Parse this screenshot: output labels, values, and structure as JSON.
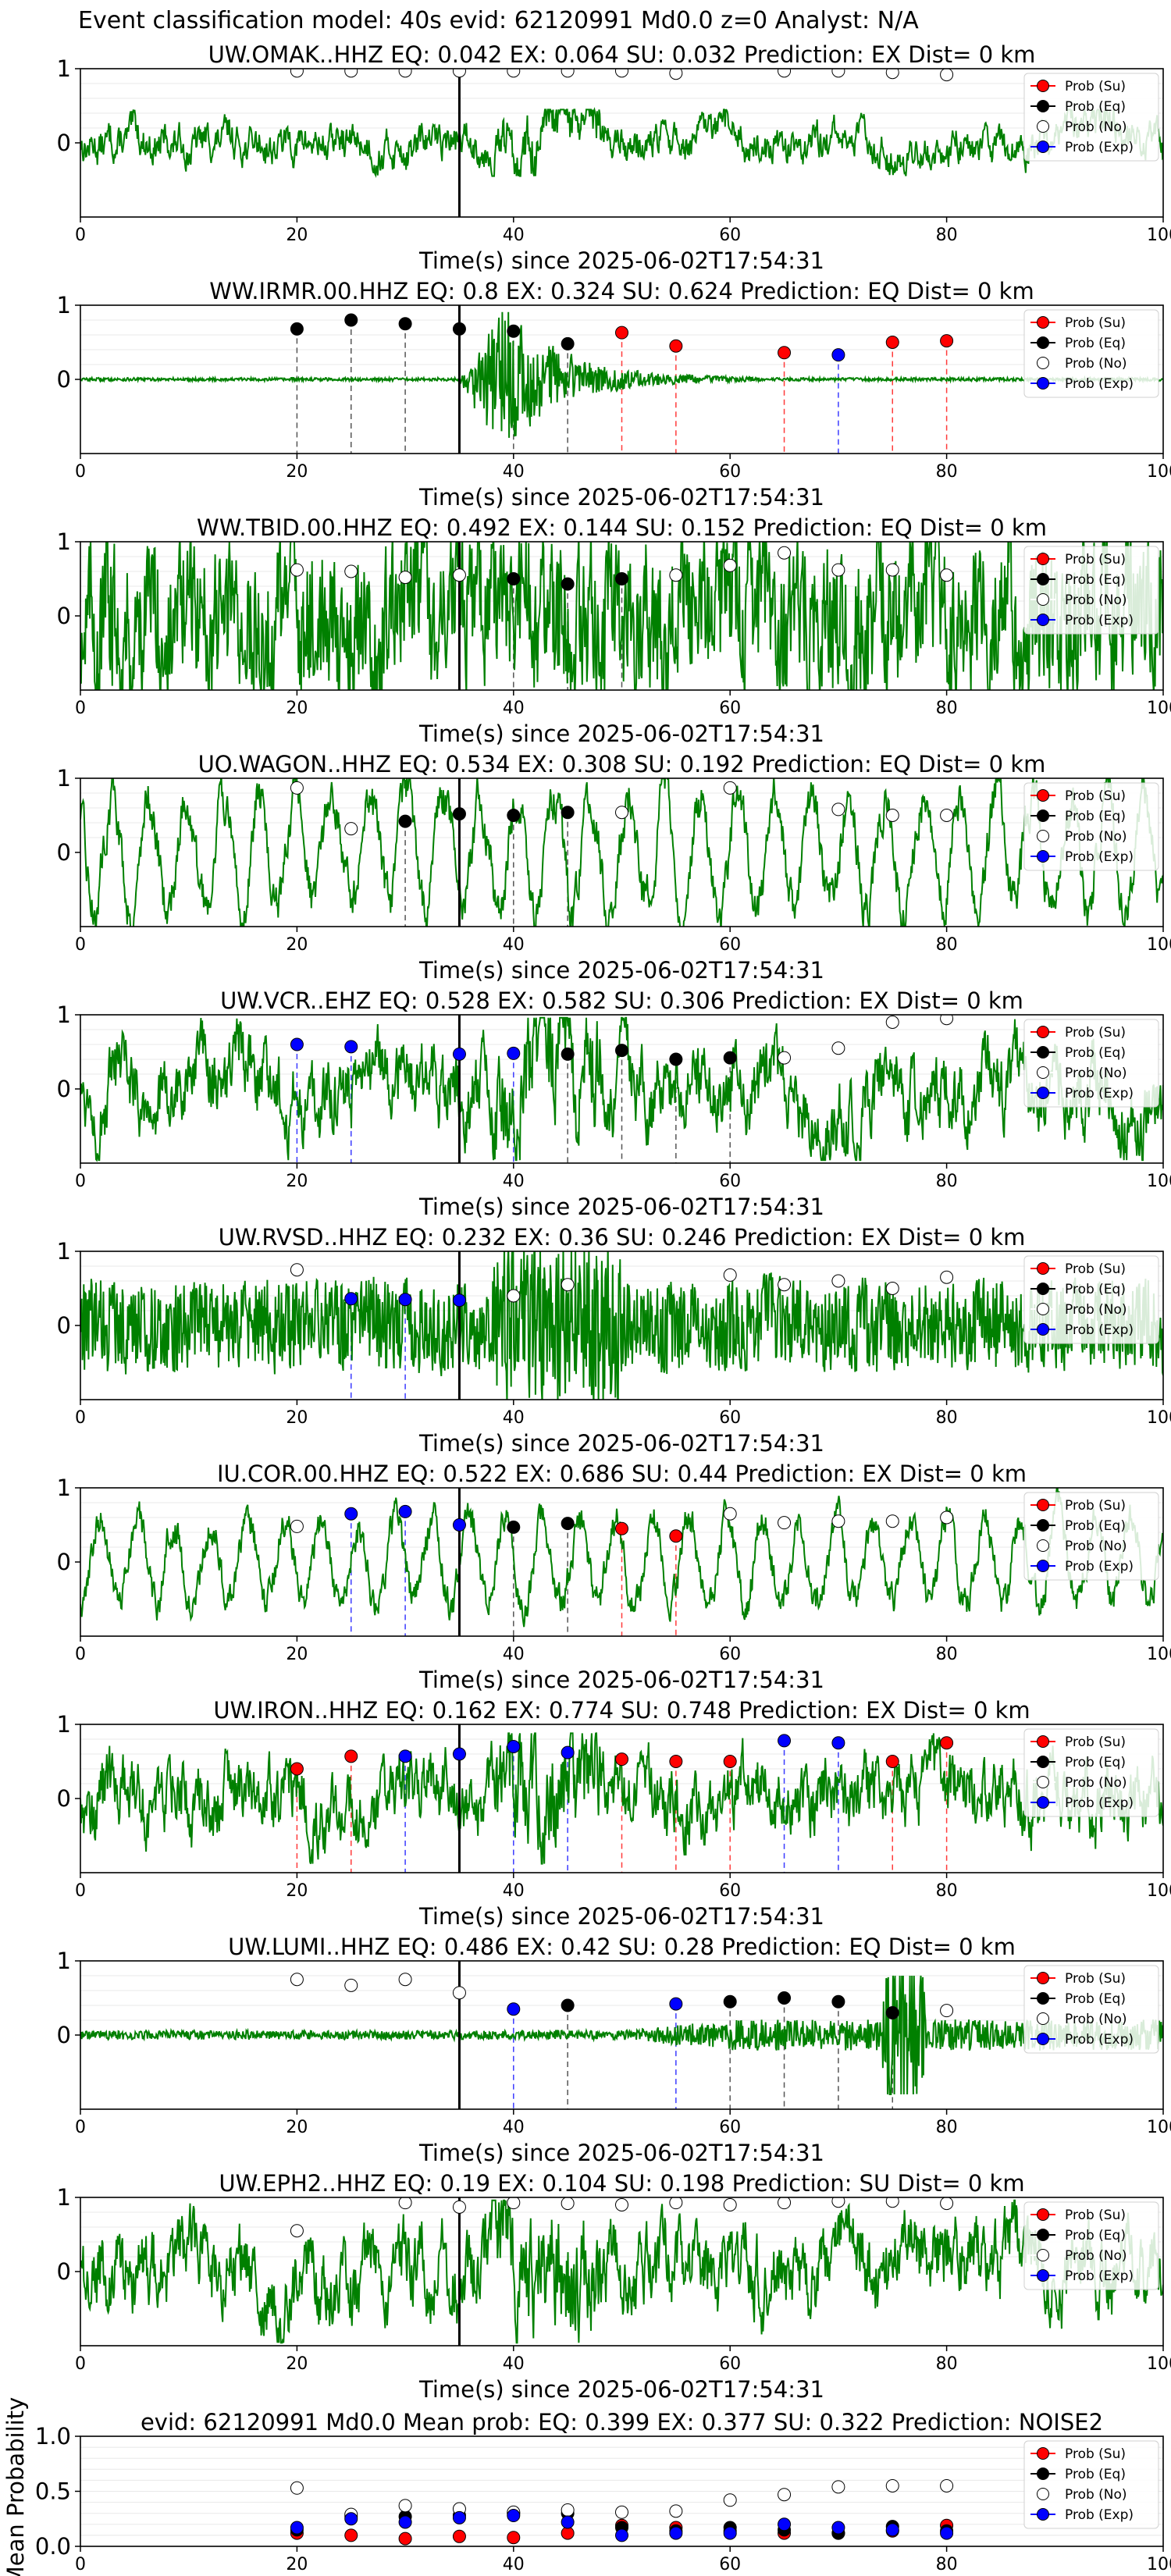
{
  "figure": {
    "suptitle": "Event classification model: 40s evid: 62120991 Md0.0 z=0 Analyst: N/A"
  },
  "legend_labels": [
    "Prob (Su)",
    "Prob (Eq)",
    "Prob (No)",
    "Prob (Exp)"
  ],
  "colors": {
    "su": "#ff0000",
    "eq": "#000000",
    "no": "#ffffff",
    "exp": "#0000ff",
    "waveform": "#008000",
    "arrival": "#000000"
  },
  "chart_data": [
    {
      "type": "line",
      "panel": "trace",
      "title": "UW.OMAK..HHZ   EQ: 0.042  EX: 0.064  SU: 0.032   Prediction: EX    Dist= 0 km",
      "xlabel": "Time(s) since 2025-06-02T17:54:31",
      "xlim": [
        0,
        100
      ],
      "ylim": [
        -1,
        1
      ],
      "xticks": [
        "0",
        "20",
        "40",
        "60",
        "80",
        "100"
      ],
      "yticks": [
        "1",
        "0"
      ],
      "arrival_time": 35,
      "waveform_style": "broadband",
      "waveform_amp": 0.28,
      "points": [
        {
          "x": 20,
          "y": 0.97,
          "cls": "no"
        },
        {
          "x": 25,
          "y": 0.97,
          "cls": "no"
        },
        {
          "x": 30,
          "y": 0.97,
          "cls": "no"
        },
        {
          "x": 35,
          "y": 0.97,
          "cls": "no"
        },
        {
          "x": 40,
          "y": 0.97,
          "cls": "no"
        },
        {
          "x": 45,
          "y": 0.97,
          "cls": "no"
        },
        {
          "x": 50,
          "y": 0.97,
          "cls": "no"
        },
        {
          "x": 55,
          "y": 0.94,
          "cls": "no"
        },
        {
          "x": 65,
          "y": 0.97,
          "cls": "no"
        },
        {
          "x": 70,
          "y": 0.97,
          "cls": "no"
        },
        {
          "x": 75,
          "y": 0.95,
          "cls": "no"
        },
        {
          "x": 80,
          "y": 0.92,
          "cls": "no"
        }
      ]
    },
    {
      "type": "line",
      "panel": "trace",
      "title": "WW.IRMR.00.HHZ   EQ: 0.8  EX: 0.324  SU: 0.624   Prediction: EQ    Dist= 0 km",
      "xlabel": "Time(s) since 2025-06-02T17:54:31",
      "xlim": [
        0,
        100
      ],
      "ylim": [
        -1,
        1
      ],
      "xticks": [
        "0",
        "20",
        "40",
        "60",
        "80",
        "100"
      ],
      "yticks": [
        "1",
        "0"
      ],
      "arrival_time": 35,
      "waveform_style": "quiet_burst",
      "waveform_amp": 0.7,
      "points": [
        {
          "x": 20,
          "y": 0.68,
          "cls": "eq"
        },
        {
          "x": 25,
          "y": 0.8,
          "cls": "eq"
        },
        {
          "x": 30,
          "y": 0.75,
          "cls": "eq"
        },
        {
          "x": 35,
          "y": 0.68,
          "cls": "eq"
        },
        {
          "x": 40,
          "y": 0.65,
          "cls": "eq"
        },
        {
          "x": 45,
          "y": 0.48,
          "cls": "eq"
        },
        {
          "x": 50,
          "y": 0.63,
          "cls": "su"
        },
        {
          "x": 55,
          "y": 0.45,
          "cls": "su"
        },
        {
          "x": 65,
          "y": 0.36,
          "cls": "su"
        },
        {
          "x": 70,
          "y": 0.33,
          "cls": "exp"
        },
        {
          "x": 75,
          "y": 0.5,
          "cls": "su"
        },
        {
          "x": 80,
          "y": 0.52,
          "cls": "su"
        }
      ]
    },
    {
      "type": "line",
      "panel": "trace",
      "title": "WW.TBID.00.HHZ   EQ: 0.492  EX: 0.144  SU: 0.152   Prediction: EQ    Dist= 0 km",
      "xlabel": "Time(s) since 2025-06-02T17:54:31",
      "xlim": [
        0,
        100
      ],
      "ylim": [
        -1,
        1
      ],
      "xticks": [
        "0",
        "20",
        "40",
        "60",
        "80",
        "100"
      ],
      "yticks": [
        "1",
        "0"
      ],
      "arrival_time": 35,
      "waveform_style": "noisy",
      "waveform_amp": 0.85,
      "points": [
        {
          "x": 20,
          "y": 0.62,
          "cls": "no"
        },
        {
          "x": 25,
          "y": 0.6,
          "cls": "no"
        },
        {
          "x": 30,
          "y": 0.52,
          "cls": "no"
        },
        {
          "x": 35,
          "y": 0.55,
          "cls": "no"
        },
        {
          "x": 40,
          "y": 0.5,
          "cls": "eq"
        },
        {
          "x": 45,
          "y": 0.43,
          "cls": "eq"
        },
        {
          "x": 50,
          "y": 0.5,
          "cls": "eq"
        },
        {
          "x": 55,
          "y": 0.55,
          "cls": "no"
        },
        {
          "x": 60,
          "y": 0.68,
          "cls": "no"
        },
        {
          "x": 65,
          "y": 0.85,
          "cls": "no"
        },
        {
          "x": 70,
          "y": 0.62,
          "cls": "no"
        },
        {
          "x": 75,
          "y": 0.62,
          "cls": "no"
        },
        {
          "x": 80,
          "y": 0.55,
          "cls": "no"
        }
      ]
    },
    {
      "type": "line",
      "panel": "trace",
      "title": "UO.WAGON..HHZ   EQ: 0.534  EX: 0.308  SU: 0.192   Prediction: EQ    Dist= 0 km",
      "xlabel": "Time(s) since 2025-06-02T17:54:31",
      "xlim": [
        0,
        100
      ],
      "ylim": [
        -1,
        1
      ],
      "xticks": [
        "0",
        "20",
        "40",
        "60",
        "80",
        "100"
      ],
      "yticks": [
        "1",
        "0"
      ],
      "arrival_time": 35,
      "waveform_style": "oscillating",
      "waveform_amp": 0.85,
      "points": [
        {
          "x": 20,
          "y": 0.87,
          "cls": "no"
        },
        {
          "x": 25,
          "y": 0.32,
          "cls": "no"
        },
        {
          "x": 30,
          "y": 0.42,
          "cls": "eq"
        },
        {
          "x": 35,
          "y": 0.52,
          "cls": "eq"
        },
        {
          "x": 40,
          "y": 0.5,
          "cls": "eq"
        },
        {
          "x": 45,
          "y": 0.54,
          "cls": "eq"
        },
        {
          "x": 50,
          "y": 0.54,
          "cls": "no"
        },
        {
          "x": 60,
          "y": 0.87,
          "cls": "no"
        },
        {
          "x": 70,
          "y": 0.58,
          "cls": "no"
        },
        {
          "x": 75,
          "y": 0.5,
          "cls": "no"
        },
        {
          "x": 80,
          "y": 0.5,
          "cls": "no"
        }
      ]
    },
    {
      "type": "line",
      "panel": "trace",
      "title": "UW.VCR..EHZ   EQ: 0.528  EX: 0.582  SU: 0.306   Prediction: EX    Dist= 0 km",
      "xlabel": "Time(s) since 2025-06-02T17:54:31",
      "xlim": [
        0,
        100
      ],
      "ylim": [
        -1,
        1
      ],
      "xticks": [
        "0",
        "20",
        "40",
        "60",
        "80",
        "100"
      ],
      "yticks": [
        "1",
        "0"
      ],
      "arrival_time": 35,
      "waveform_style": "broadband",
      "waveform_amp": 0.6,
      "points": [
        {
          "x": 20,
          "y": 0.6,
          "cls": "exp"
        },
        {
          "x": 25,
          "y": 0.57,
          "cls": "exp"
        },
        {
          "x": 35,
          "y": 0.47,
          "cls": "exp"
        },
        {
          "x": 40,
          "y": 0.48,
          "cls": "exp"
        },
        {
          "x": 45,
          "y": 0.47,
          "cls": "eq"
        },
        {
          "x": 50,
          "y": 0.52,
          "cls": "eq"
        },
        {
          "x": 55,
          "y": 0.4,
          "cls": "eq"
        },
        {
          "x": 60,
          "y": 0.42,
          "cls": "eq"
        },
        {
          "x": 65,
          "y": 0.42,
          "cls": "no"
        },
        {
          "x": 70,
          "y": 0.55,
          "cls": "no"
        },
        {
          "x": 75,
          "y": 0.9,
          "cls": "no"
        },
        {
          "x": 80,
          "y": 0.95,
          "cls": "no"
        }
      ]
    },
    {
      "type": "line",
      "panel": "trace",
      "title": "UW.RVSD..HHZ   EQ: 0.232  EX: 0.36  SU: 0.246   Prediction: EX    Dist= 0 km",
      "xlabel": "Time(s) since 2025-06-02T17:54:31",
      "xlim": [
        0,
        100
      ],
      "ylim": [
        -1,
        1
      ],
      "xticks": [
        "0",
        "20",
        "40",
        "60",
        "80",
        "100"
      ],
      "yticks": [
        "1",
        "0"
      ],
      "arrival_time": 35,
      "waveform_style": "dense",
      "waveform_amp": 0.75,
      "points": [
        {
          "x": 20,
          "y": 0.75,
          "cls": "no"
        },
        {
          "x": 25,
          "y": 0.36,
          "cls": "exp"
        },
        {
          "x": 30,
          "y": 0.35,
          "cls": "exp"
        },
        {
          "x": 35,
          "y": 0.34,
          "cls": "exp"
        },
        {
          "x": 40,
          "y": 0.4,
          "cls": "no"
        },
        {
          "x": 45,
          "y": 0.55,
          "cls": "no"
        },
        {
          "x": 60,
          "y": 0.68,
          "cls": "no"
        },
        {
          "x": 65,
          "y": 0.55,
          "cls": "no"
        },
        {
          "x": 70,
          "y": 0.6,
          "cls": "no"
        },
        {
          "x": 75,
          "y": 0.5,
          "cls": "no"
        },
        {
          "x": 80,
          "y": 0.65,
          "cls": "no"
        }
      ]
    },
    {
      "type": "line",
      "panel": "trace",
      "title": "IU.COR.00.HHZ   EQ: 0.522  EX: 0.686  SU: 0.44   Prediction: EX    Dist= 0 km",
      "xlabel": "Time(s) since 2025-06-02T17:54:31",
      "xlim": [
        0,
        100
      ],
      "ylim": [
        -1,
        1
      ],
      "xticks": [
        "0",
        "20",
        "40",
        "60",
        "80",
        "100"
      ],
      "yticks": [
        "1",
        "0"
      ],
      "arrival_time": 35,
      "waveform_style": "oscillating",
      "waveform_amp": 0.65,
      "points": [
        {
          "x": 20,
          "y": 0.48,
          "cls": "no"
        },
        {
          "x": 25,
          "y": 0.65,
          "cls": "exp"
        },
        {
          "x": 30,
          "y": 0.68,
          "cls": "exp"
        },
        {
          "x": 35,
          "y": 0.5,
          "cls": "exp"
        },
        {
          "x": 40,
          "y": 0.47,
          "cls": "eq"
        },
        {
          "x": 45,
          "y": 0.52,
          "cls": "eq"
        },
        {
          "x": 50,
          "y": 0.45,
          "cls": "su"
        },
        {
          "x": 55,
          "y": 0.35,
          "cls": "su"
        },
        {
          "x": 60,
          "y": 0.65,
          "cls": "no"
        },
        {
          "x": 65,
          "y": 0.53,
          "cls": "no"
        },
        {
          "x": 70,
          "y": 0.55,
          "cls": "no"
        },
        {
          "x": 75,
          "y": 0.55,
          "cls": "no"
        },
        {
          "x": 80,
          "y": 0.6,
          "cls": "no"
        }
      ]
    },
    {
      "type": "line",
      "panel": "trace",
      "title": "UW.IRON..HHZ   EQ: 0.162  EX: 0.774  SU: 0.748   Prediction: EX    Dist= 0 km",
      "xlabel": "Time(s) since 2025-06-02T17:54:31",
      "xlim": [
        0,
        100
      ],
      "ylim": [
        -1,
        1
      ],
      "xticks": [
        "0",
        "20",
        "40",
        "60",
        "80",
        "100"
      ],
      "yticks": [
        "1",
        "0"
      ],
      "arrival_time": 35,
      "waveform_style": "broadband",
      "waveform_amp": 0.55,
      "points": [
        {
          "x": 20,
          "y": 0.4,
          "cls": "su"
        },
        {
          "x": 25,
          "y": 0.57,
          "cls": "su"
        },
        {
          "x": 30,
          "y": 0.57,
          "cls": "exp"
        },
        {
          "x": 35,
          "y": 0.6,
          "cls": "exp"
        },
        {
          "x": 40,
          "y": 0.7,
          "cls": "exp"
        },
        {
          "x": 45,
          "y": 0.62,
          "cls": "exp"
        },
        {
          "x": 50,
          "y": 0.53,
          "cls": "su"
        },
        {
          "x": 55,
          "y": 0.5,
          "cls": "su"
        },
        {
          "x": 60,
          "y": 0.5,
          "cls": "su"
        },
        {
          "x": 65,
          "y": 0.78,
          "cls": "exp"
        },
        {
          "x": 70,
          "y": 0.75,
          "cls": "exp"
        },
        {
          "x": 75,
          "y": 0.5,
          "cls": "su"
        },
        {
          "x": 80,
          "y": 0.75,
          "cls": "su"
        }
      ]
    },
    {
      "type": "line",
      "panel": "trace",
      "title": "UW.LUMI..HHZ   EQ: 0.486  EX: 0.42  SU: 0.28   Prediction: EQ    Dist= 0 km",
      "xlabel": "Time(s) since 2025-06-02T17:54:31",
      "xlim": [
        0,
        100
      ],
      "ylim": [
        -1,
        1
      ],
      "xticks": [
        "0",
        "20",
        "40",
        "60",
        "80",
        "100"
      ],
      "yticks": [
        "1",
        "0"
      ],
      "arrival_time": 35,
      "waveform_style": "quiet_late",
      "waveform_amp": 0.5,
      "points": [
        {
          "x": 20,
          "y": 0.75,
          "cls": "no"
        },
        {
          "x": 25,
          "y": 0.67,
          "cls": "no"
        },
        {
          "x": 30,
          "y": 0.75,
          "cls": "no"
        },
        {
          "x": 35,
          "y": 0.57,
          "cls": "no"
        },
        {
          "x": 40,
          "y": 0.35,
          "cls": "exp"
        },
        {
          "x": 45,
          "y": 0.4,
          "cls": "eq"
        },
        {
          "x": 55,
          "y": 0.42,
          "cls": "exp"
        },
        {
          "x": 60,
          "y": 0.45,
          "cls": "eq"
        },
        {
          "x": 65,
          "y": 0.5,
          "cls": "eq"
        },
        {
          "x": 70,
          "y": 0.45,
          "cls": "eq"
        },
        {
          "x": 75,
          "y": 0.3,
          "cls": "eq"
        },
        {
          "x": 80,
          "y": 0.33,
          "cls": "no"
        }
      ]
    },
    {
      "type": "line",
      "panel": "trace",
      "title": "UW.EPH2..HHZ   EQ: 0.19  EX: 0.104  SU: 0.198   Prediction: SU    Dist= 0 km",
      "xlabel": "Time(s) since 2025-06-02T17:54:31",
      "xlim": [
        0,
        100
      ],
      "ylim": [
        -1,
        1
      ],
      "xticks": [
        "0",
        "20",
        "40",
        "60",
        "80",
        "100"
      ],
      "yticks": [
        "1",
        "0"
      ],
      "arrival_time": 35,
      "waveform_style": "broadband",
      "waveform_amp": 0.6,
      "points": [
        {
          "x": 20,
          "y": 0.55,
          "cls": "no"
        },
        {
          "x": 30,
          "y": 0.93,
          "cls": "no"
        },
        {
          "x": 35,
          "y": 0.87,
          "cls": "no"
        },
        {
          "x": 40,
          "y": 0.93,
          "cls": "no"
        },
        {
          "x": 45,
          "y": 0.92,
          "cls": "no"
        },
        {
          "x": 50,
          "y": 0.9,
          "cls": "no"
        },
        {
          "x": 55,
          "y": 0.93,
          "cls": "no"
        },
        {
          "x": 60,
          "y": 0.9,
          "cls": "no"
        },
        {
          "x": 65,
          "y": 0.93,
          "cls": "no"
        },
        {
          "x": 70,
          "y": 0.95,
          "cls": "no"
        },
        {
          "x": 75,
          "y": 0.95,
          "cls": "no"
        },
        {
          "x": 80,
          "y": 0.92,
          "cls": "no"
        }
      ]
    },
    {
      "type": "scatter",
      "panel": "mean",
      "title": "evid: 62120991  Md0.0   Mean prob:   EQ: 0.399  EX: 0.377  SU: 0.322   Prediction: NOISE2",
      "ylabel": "Mean Probability",
      "xlim": [
        0,
        100
      ],
      "ylim": [
        0,
        1
      ],
      "xticks": [
        "0",
        "20",
        "40",
        "60",
        "80",
        "100"
      ],
      "yticks": [
        "0.0",
        "0.5",
        "1.0"
      ],
      "x": [
        20,
        25,
        30,
        35,
        40,
        45,
        50,
        55,
        60,
        65,
        70,
        75,
        80
      ],
      "series": [
        {
          "name": "Prob (Su)",
          "cls": "su",
          "values": [
            0.12,
            0.1,
            0.07,
            0.09,
            0.08,
            0.12,
            0.19,
            0.17,
            0.14,
            0.12,
            0.12,
            0.14,
            0.19
          ]
        },
        {
          "name": "Prob (Eq)",
          "cls": "eq",
          "values": [
            0.15,
            0.27,
            0.27,
            0.28,
            0.3,
            0.3,
            0.17,
            0.14,
            0.17,
            0.15,
            0.12,
            0.18,
            0.14
          ]
        },
        {
          "name": "Prob (No)",
          "cls": "no",
          "values": [
            0.53,
            0.29,
            0.37,
            0.34,
            0.31,
            0.33,
            0.31,
            0.32,
            0.42,
            0.47,
            0.54,
            0.55,
            0.55
          ]
        },
        {
          "name": "Prob (Exp)",
          "cls": "exp",
          "values": [
            0.17,
            0.25,
            0.22,
            0.26,
            0.28,
            0.22,
            0.1,
            0.12,
            0.12,
            0.2,
            0.17,
            0.15,
            0.12
          ]
        }
      ]
    }
  ]
}
